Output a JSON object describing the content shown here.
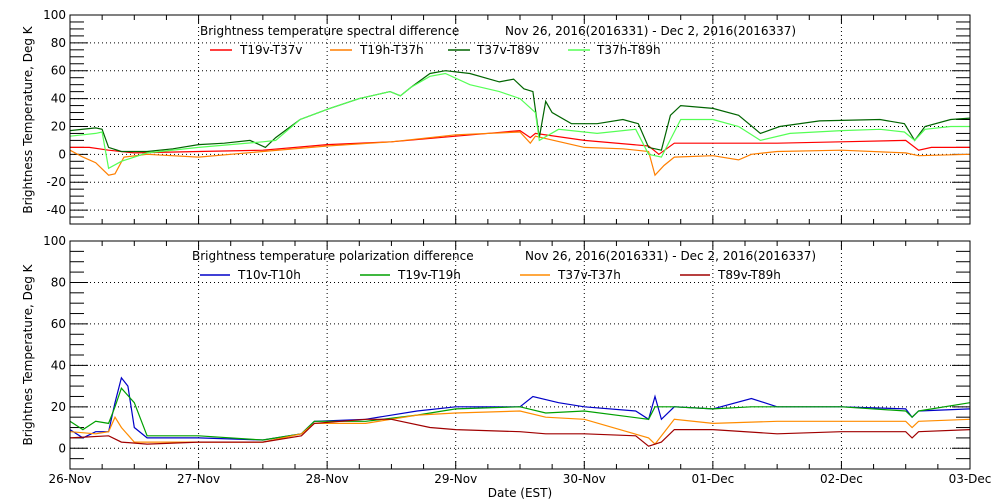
{
  "chart_data": [
    {
      "type": "line",
      "title": "Brightness temperature spectral difference",
      "date_range": "Nov 26, 2016(2016331)  -  Dec  2, 2016(2016337)",
      "ylabel": "Brightness Temperature, Deg K",
      "xlabel": "",
      "ylim": [
        -50,
        100
      ],
      "yticks": [
        "100",
        "80",
        "60",
        "40",
        "20",
        "0",
        "-20",
        "-40"
      ],
      "ytick_values": [
        100,
        80,
        60,
        40,
        20,
        0,
        -20,
        -40
      ],
      "xlim_days": [
        0,
        7
      ],
      "grid": true,
      "legend_placement": "top",
      "series": [
        {
          "name": "T19v-T37v",
          "color": "#ff0000",
          "x": [
            0,
            0.15,
            0.3,
            0.5,
            1,
            1.5,
            2,
            2.5,
            3,
            3.5,
            3.58,
            3.62,
            4,
            4.5,
            4.58,
            4.7,
            5,
            5.5,
            6,
            6.5,
            6.6,
            6.7,
            7
          ],
          "y": [
            5,
            5,
            3,
            1,
            2,
            3,
            7,
            9,
            13,
            17,
            12,
            15,
            10,
            6,
            0,
            8,
            8,
            8,
            9,
            10,
            3,
            5,
            5
          ]
        },
        {
          "name": "T19h-T37h",
          "color": "#ff7f00",
          "x": [
            0,
            0.1,
            0.2,
            0.3,
            0.35,
            0.42,
            0.6,
            1,
            1.5,
            2,
            2.5,
            3,
            3.5,
            3.58,
            3.62,
            4,
            4.3,
            4.5,
            4.55,
            4.62,
            4.7,
            5,
            5.2,
            5.3,
            5.5,
            6,
            6.5,
            6.6,
            7
          ],
          "y": [
            3,
            -2,
            -6,
            -15,
            -14,
            -2,
            0,
            -2,
            2,
            6,
            9,
            14,
            16,
            8,
            13,
            5,
            4,
            2,
            -15,
            -8,
            -2,
            -1,
            -4,
            0,
            2,
            3,
            1,
            -1,
            0
          ]
        },
        {
          "name": "T37v-T89v",
          "color": "#006400",
          "x": [
            0,
            0.2,
            0.25,
            0.3,
            0.4,
            0.6,
            0.8,
            1,
            1.2,
            1.4,
            1.52,
            1.6,
            1.79,
            2.02,
            2.25,
            2.49,
            2.57,
            2.65,
            2.8,
            2.92,
            3.11,
            3.34,
            3.45,
            3.53,
            3.6,
            3.65,
            3.7,
            3.75,
            3.9,
            4.1,
            4.3,
            4.42,
            4.5,
            4.6,
            4.67,
            4.75,
            5,
            5.2,
            5.37,
            5.52,
            5.83,
            6.3,
            6.49,
            6.57,
            6.65,
            6.85,
            7
          ],
          "y": [
            17,
            19,
            18,
            5,
            2,
            2,
            4,
            7,
            8,
            10,
            5,
            12,
            25,
            33,
            40,
            45,
            42,
            48,
            58,
            60,
            58,
            52,
            54,
            47,
            45,
            12,
            38,
            30,
            22,
            22,
            25,
            22,
            5,
            3,
            28,
            35,
            33,
            28,
            15,
            20,
            24,
            25,
            22,
            10,
            20,
            25,
            26
          ]
        },
        {
          "name": "T37h-T89h",
          "color": "#55ff55",
          "x": [
            0,
            0.2,
            0.25,
            0.3,
            0.4,
            0.6,
            1,
            1.5,
            1.6,
            1.79,
            2.02,
            2.25,
            2.49,
            2.57,
            2.65,
            2.8,
            2.92,
            3.11,
            3.34,
            3.5,
            3.62,
            3.65,
            3.8,
            4.1,
            4.4,
            4.5,
            4.6,
            4.75,
            5,
            5.2,
            5.37,
            5.6,
            6,
            6.3,
            6.49,
            6.57,
            6.65,
            6.85,
            7
          ],
          "y": [
            13,
            15,
            16,
            -10,
            -5,
            1,
            5,
            9,
            10,
            25,
            33,
            40,
            45,
            42,
            48,
            56,
            58,
            50,
            45,
            40,
            30,
            10,
            18,
            15,
            18,
            0,
            -2,
            25,
            25,
            20,
            10,
            15,
            17,
            18,
            16,
            10,
            18,
            20,
            20
          ]
        }
      ]
    },
    {
      "type": "line",
      "title": "Brightness temperature polarization difference",
      "date_range": "Nov 26, 2016(2016331)  -  Dec  2, 2016(2016337)",
      "ylabel": "Brightnes Temperature, Deg K",
      "xlabel": "Date (EST)",
      "ylim": [
        -10,
        100
      ],
      "yticks": [
        "100",
        "80",
        "60",
        "40",
        "20",
        "0"
      ],
      "ytick_values": [
        100,
        80,
        60,
        40,
        20,
        0
      ],
      "xticks": [
        "26-Nov",
        "27-Nov",
        "28-Nov",
        "29-Nov",
        "30-Nov",
        "01-Dec",
        "02-Dec",
        "03-Dec"
      ],
      "xlim_days": [
        0,
        7
      ],
      "grid": true,
      "legend_placement": "top",
      "series": [
        {
          "name": "T10v-T10h",
          "color": "#0000c8",
          "x": [
            0,
            0.1,
            0.2,
            0.3,
            0.35,
            0.4,
            0.45,
            0.5,
            0.6,
            1,
            1.5,
            1.8,
            1.9,
            2.3,
            2.7,
            3,
            3.5,
            3.6,
            3.8,
            4,
            4.4,
            4.5,
            4.55,
            4.6,
            4.7,
            5,
            5.3,
            5.5,
            6,
            6.5,
            6.55,
            6.6,
            7
          ],
          "y": [
            9,
            5,
            8,
            8,
            22,
            34,
            30,
            10,
            5,
            5,
            4,
            7,
            13,
            14,
            18,
            20,
            20,
            25,
            22,
            20,
            18,
            14,
            25,
            14,
            20,
            19,
            24,
            20,
            20,
            19,
            15,
            18,
            19
          ]
        },
        {
          "name": "T19v-T19h",
          "color": "#00a000",
          "x": [
            0,
            0.1,
            0.2,
            0.3,
            0.35,
            0.4,
            0.5,
            0.6,
            1,
            1.5,
            1.8,
            1.9,
            2.3,
            2.7,
            3,
            3.5,
            3.7,
            4,
            4.5,
            4.55,
            4.7,
            5,
            5.3,
            5.5,
            6,
            6.5,
            6.55,
            6.6,
            7
          ],
          "y": [
            13,
            9,
            13,
            12,
            20,
            29,
            22,
            6,
            6,
            4,
            7,
            13,
            13,
            16,
            19,
            20,
            17,
            18,
            14,
            20,
            20,
            19,
            20,
            20,
            20,
            18,
            15,
            18,
            22
          ]
        },
        {
          "name": "T37v-T37h",
          "color": "#ff8c00",
          "x": [
            0,
            0.2,
            0.3,
            0.35,
            0.4,
            0.5,
            1,
            1.5,
            1.8,
            1.9,
            2.3,
            2.7,
            3,
            3.5,
            3.7,
            4,
            4.5,
            4.55,
            4.7,
            5,
            5.5,
            6,
            6.5,
            6.55,
            6.6,
            7
          ],
          "y": [
            8,
            7,
            8,
            15,
            10,
            3,
            3,
            3,
            7,
            12,
            12,
            16,
            17,
            18,
            15,
            14,
            5,
            2,
            14,
            12,
            13,
            13,
            13,
            10,
            13,
            14
          ]
        },
        {
          "name": "T89v-T89h",
          "color": "#a00000",
          "x": [
            0,
            0.3,
            0.4,
            0.6,
            1,
            1.5,
            1.8,
            1.9,
            2.3,
            2.5,
            2.8,
            3,
            3.5,
            3.7,
            4,
            4.4,
            4.5,
            4.6,
            4.7,
            5,
            5.5,
            6,
            6.5,
            6.55,
            6.6,
            7
          ],
          "y": [
            5,
            6,
            3,
            2,
            3,
            3,
            6,
            12,
            14,
            14,
            10,
            9,
            8,
            7,
            7,
            6,
            1,
            3,
            9,
            9,
            7,
            8,
            8,
            5,
            8,
            9
          ]
        }
      ]
    }
  ]
}
